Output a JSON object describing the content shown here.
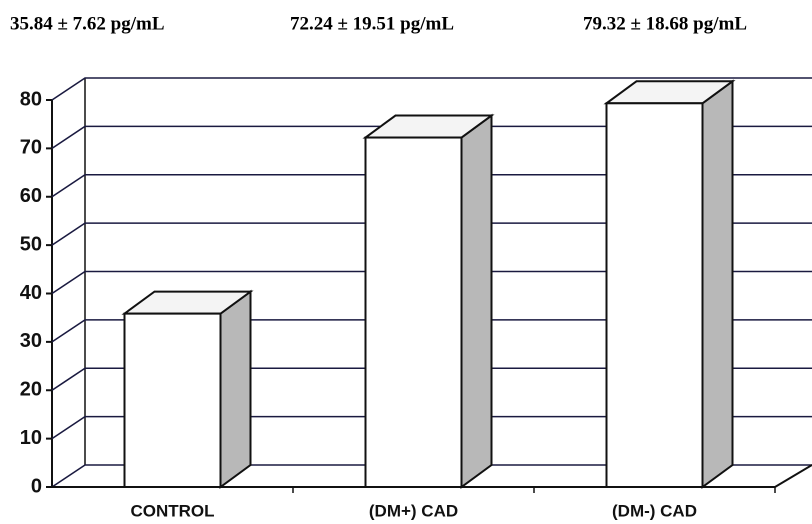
{
  "chart_data": {
    "type": "bar3d",
    "categories": [
      "CONTROL",
      "(DM+) CAD",
      "(DM-) CAD"
    ],
    "values": [
      35.84,
      72.24,
      79.32
    ],
    "value_labels": [
      "35.84 ± 7.62 pg/mL",
      "72.24 ± 19.51 pg/mL",
      "79.32 ± 18.68 pg/mL"
    ],
    "color": "#ffffff",
    "ylim": [
      0,
      80
    ],
    "yticks": [
      0,
      10,
      20,
      30,
      40,
      50,
      60,
      70,
      80
    ],
    "grid": true
  }
}
